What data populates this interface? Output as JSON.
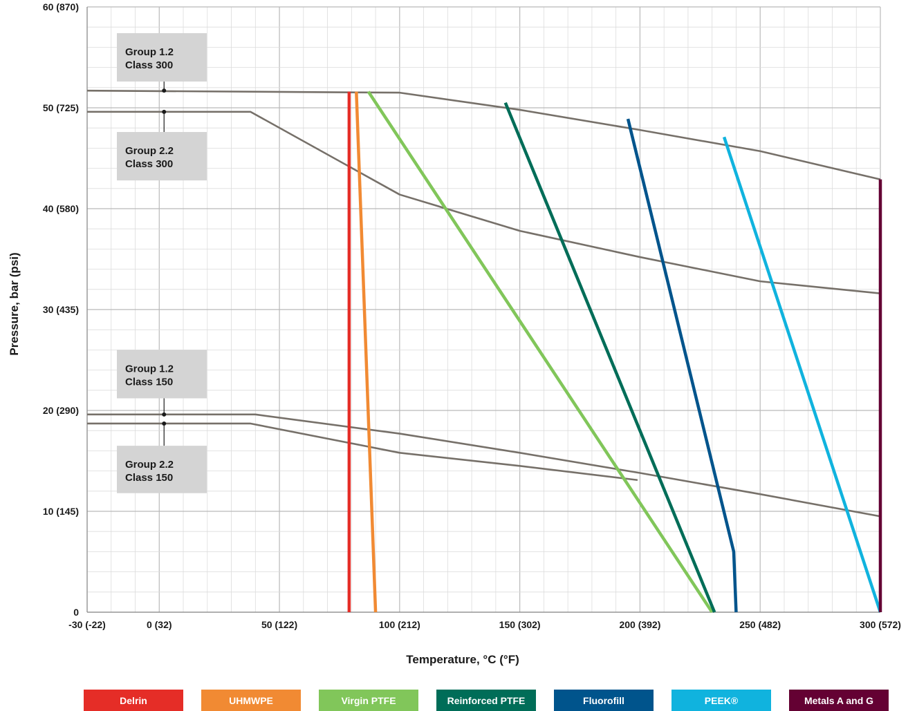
{
  "chart_data": {
    "type": "line",
    "xlabel": "Temperature, °C (°F)",
    "ylabel": "Pressure, bar (psi)",
    "xlim": [
      -30,
      300
    ],
    "ylim": [
      0,
      60
    ],
    "grid": true,
    "legend_position": "bottom",
    "x_ticks": [
      {
        "value": -30,
        "label": "-30 (-22)"
      },
      {
        "value": 0,
        "label": "0 (32)"
      },
      {
        "value": 50,
        "label": "50 (122)"
      },
      {
        "value": 100,
        "label": "100 (212)"
      },
      {
        "value": 150,
        "label": "150 (302)"
      },
      {
        "value": 200,
        "label": "200 (392)"
      },
      {
        "value": 250,
        "label": "250 (482)"
      },
      {
        "value": 300,
        "label": "300 (572)"
      }
    ],
    "y_ticks": [
      {
        "value": 0,
        "label": "0"
      },
      {
        "value": 10,
        "label": "10 (145)"
      },
      {
        "value": 20,
        "label": "20 (290)"
      },
      {
        "value": 30,
        "label": "30 (435)"
      },
      {
        "value": 40,
        "label": "40 (580)"
      },
      {
        "value": 50,
        "label": "50 (725)"
      },
      {
        "value": 60,
        "label": "60 (870)"
      }
    ],
    "rating_curves": [
      {
        "name": "Group 1.2 Class 300",
        "color": "#767069",
        "points": [
          [
            -30,
            51.7
          ],
          [
            100,
            51.5
          ],
          [
            150,
            49.8
          ],
          [
            200,
            47.8
          ],
          [
            250,
            45.7
          ],
          [
            300,
            42.9
          ]
        ]
      },
      {
        "name": "Group 2.2 Class 300",
        "color": "#767069",
        "points": [
          [
            -30,
            49.6
          ],
          [
            38,
            49.6
          ],
          [
            100,
            41.4
          ],
          [
            150,
            37.8
          ],
          [
            200,
            35.2
          ],
          [
            250,
            32.8
          ],
          [
            300,
            31.6
          ]
        ]
      },
      {
        "name": "Group 1.2 Class 150",
        "color": "#767069",
        "points": [
          [
            -30,
            19.6
          ],
          [
            40,
            19.6
          ],
          [
            100,
            17.7
          ],
          [
            150,
            15.8
          ],
          [
            200,
            13.8
          ],
          [
            250,
            11.7
          ],
          [
            300,
            9.5
          ]
        ]
      },
      {
        "name": "Group 2.2 Class 150",
        "color": "#767069",
        "points": [
          [
            -30,
            18.7
          ],
          [
            38,
            18.7
          ],
          [
            100,
            15.8
          ],
          [
            150,
            14.5
          ],
          [
            199,
            13.1
          ]
        ]
      }
    ],
    "rating_labels": [
      {
        "line1": "Group 1.2",
        "line2": "Class 300",
        "box_top": 57.4,
        "box_bottom": 52.6,
        "connector_x": 2,
        "dot_y": 51.7
      },
      {
        "line1": "Group 2.2",
        "line2": "Class 300",
        "box_top": 47.6,
        "box_bottom": 42.8,
        "connector_x": 2,
        "dot_y": 49.6
      },
      {
        "line1": "Group 1.2",
        "line2": "Class 150",
        "box_top": 26.0,
        "box_bottom": 21.2,
        "connector_x": 2,
        "dot_y": 19.6
      },
      {
        "line1": "Group 2.2",
        "line2": "Class 150",
        "box_top": 16.5,
        "box_bottom": 11.8,
        "connector_x": 2,
        "dot_y": 18.7
      }
    ],
    "series": [
      {
        "name": "Delrin",
        "color": "#e52d27",
        "points": [
          [
            79,
            51.6
          ],
          [
            79,
            0
          ]
        ]
      },
      {
        "name": "UHMWPE",
        "color": "#f18a33",
        "points": [
          [
            82,
            51.6
          ],
          [
            90,
            0
          ]
        ]
      },
      {
        "name": "Virgin PTFE",
        "color": "#81c65a",
        "points": [
          [
            87,
            51.6
          ],
          [
            230,
            0
          ]
        ]
      },
      {
        "name": "Reinforced PTFE",
        "color": "#006d58",
        "points": [
          [
            144,
            50.5
          ],
          [
            231,
            0
          ]
        ]
      },
      {
        "name": "Fluorofill",
        "color": "#00548c",
        "points": [
          [
            195,
            48.9
          ],
          [
            239,
            6.0
          ],
          [
            240,
            0
          ]
        ]
      },
      {
        "name": "PEEK®",
        "color": "#10b3de",
        "points": [
          [
            235,
            47.1
          ],
          [
            300,
            0
          ]
        ]
      },
      {
        "name": "Metals A and G",
        "color": "#640133",
        "points": [
          [
            300,
            42.9
          ],
          [
            300,
            0
          ]
        ]
      }
    ]
  },
  "legend": [
    {
      "label": "Delrin",
      "color": "#e52d27"
    },
    {
      "label": "UHMWPE",
      "color": "#f18a33"
    },
    {
      "label": "Virgin PTFE",
      "color": "#81c65a"
    },
    {
      "label": "Reinforced PTFE",
      "color": "#006d58"
    },
    {
      "label": "Fluorofill",
      "color": "#00548c"
    },
    {
      "label": "PEEK®",
      "color": "#10b3de"
    },
    {
      "label": "Metals A and G",
      "color": "#640133"
    }
  ]
}
